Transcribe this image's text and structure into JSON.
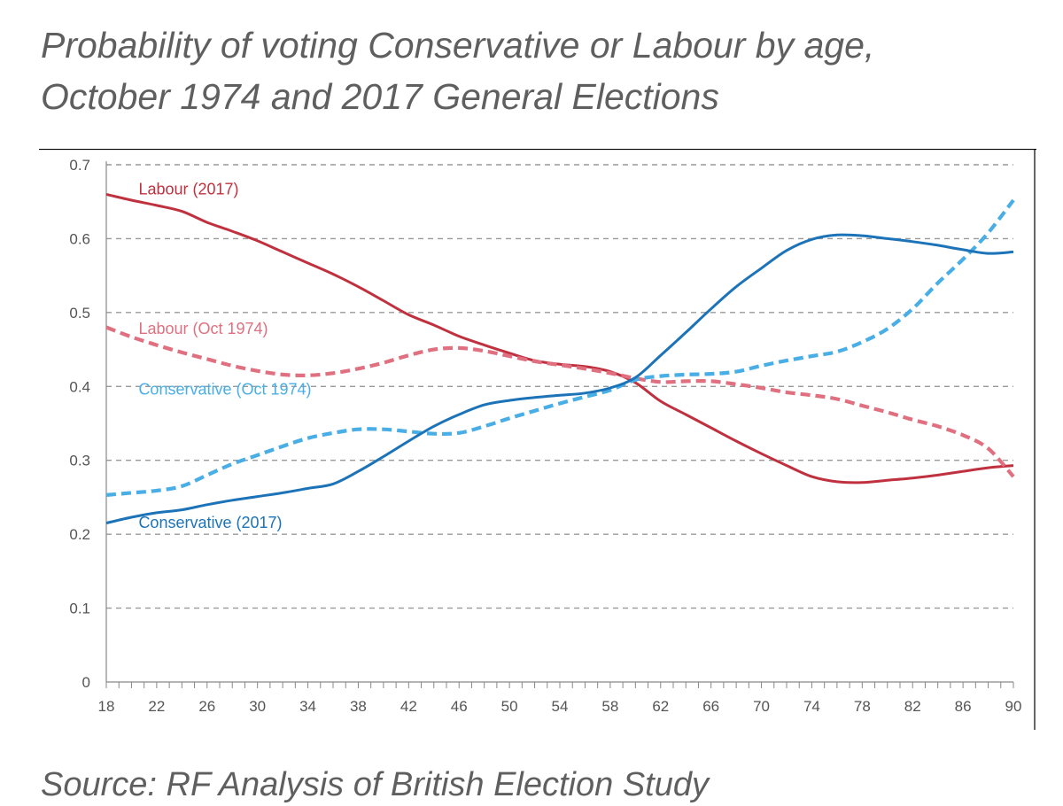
{
  "title_line1": "Probability of voting Conservative or Labour by age,",
  "title_line2": "October 1974 and 2017 General Elections",
  "source": "Source: RF Analysis of British Election Study",
  "chart_data": {
    "type": "line",
    "title": "Probability of voting Conservative or Labour by age, October 1974 and 2017 General Elections",
    "xlabel": "",
    "ylabel": "",
    "xlim": [
      18,
      90
    ],
    "ylim": [
      0,
      0.7
    ],
    "x_ticks": [
      "18",
      "22",
      "26",
      "30",
      "34",
      "38",
      "42",
      "46",
      "50",
      "54",
      "58",
      "62",
      "66",
      "70",
      "74",
      "78",
      "82",
      "86",
      "90"
    ],
    "y_ticks": [
      "0",
      "0.1",
      "0.2",
      "0.3",
      "0.4",
      "0.5",
      "0.6",
      "0.7"
    ],
    "grid": "horizontal dashed",
    "legend": "inline labels",
    "x": [
      18,
      20,
      22,
      24,
      26,
      28,
      30,
      32,
      34,
      36,
      38,
      40,
      42,
      44,
      46,
      48,
      50,
      52,
      54,
      56,
      58,
      60,
      62,
      64,
      66,
      68,
      70,
      72,
      74,
      76,
      78,
      80,
      82,
      84,
      86,
      88,
      90
    ],
    "series": [
      {
        "name": "Labour (2017)",
        "color": "#c0313f",
        "style": "solid",
        "label_x": 20,
        "label_y": 0.667,
        "values": [
          0.66,
          0.652,
          0.645,
          0.637,
          0.622,
          0.61,
          0.597,
          0.582,
          0.567,
          0.552,
          0.535,
          0.516,
          0.497,
          0.483,
          0.468,
          0.456,
          0.445,
          0.435,
          0.43,
          0.427,
          0.42,
          0.405,
          0.38,
          0.362,
          0.344,
          0.326,
          0.309,
          0.293,
          0.278,
          0.271,
          0.27,
          0.273,
          0.276,
          0.28,
          0.285,
          0.29,
          0.293
        ]
      },
      {
        "name": "Labour (Oct 1974)",
        "color": "#e0707f",
        "style": "dashed",
        "label_x": 20,
        "label_y": 0.478,
        "values": [
          0.48,
          0.467,
          0.456,
          0.446,
          0.437,
          0.428,
          0.421,
          0.416,
          0.415,
          0.418,
          0.424,
          0.432,
          0.442,
          0.45,
          0.452,
          0.448,
          0.441,
          0.434,
          0.429,
          0.424,
          0.418,
          0.411,
          0.406,
          0.407,
          0.407,
          0.403,
          0.398,
          0.392,
          0.388,
          0.383,
          0.374,
          0.365,
          0.355,
          0.346,
          0.334,
          0.316,
          0.278
        ]
      },
      {
        "name": "Conservative (Oct 1974)",
        "color": "#4aaee6",
        "style": "dashed",
        "label_x": 20,
        "label_y": 0.396,
        "values": [
          0.253,
          0.256,
          0.259,
          0.265,
          0.28,
          0.295,
          0.307,
          0.319,
          0.33,
          0.337,
          0.342,
          0.342,
          0.339,
          0.336,
          0.337,
          0.346,
          0.357,
          0.367,
          0.377,
          0.386,
          0.395,
          0.409,
          0.414,
          0.416,
          0.417,
          0.42,
          0.428,
          0.435,
          0.441,
          0.447,
          0.46,
          0.478,
          0.505,
          0.54,
          0.572,
          0.608,
          0.652
        ]
      },
      {
        "name": "Conservative (2017)",
        "color": "#1c73b8",
        "style": "solid",
        "label_x": 20,
        "label_y": 0.216,
        "values": [
          0.215,
          0.223,
          0.229,
          0.233,
          0.24,
          0.246,
          0.251,
          0.256,
          0.262,
          0.268,
          0.285,
          0.305,
          0.326,
          0.346,
          0.362,
          0.375,
          0.381,
          0.385,
          0.388,
          0.391,
          0.398,
          0.412,
          0.442,
          0.473,
          0.505,
          0.535,
          0.56,
          0.584,
          0.599,
          0.605,
          0.604,
          0.6,
          0.596,
          0.591,
          0.585,
          0.58,
          0.582
        ]
      }
    ]
  }
}
